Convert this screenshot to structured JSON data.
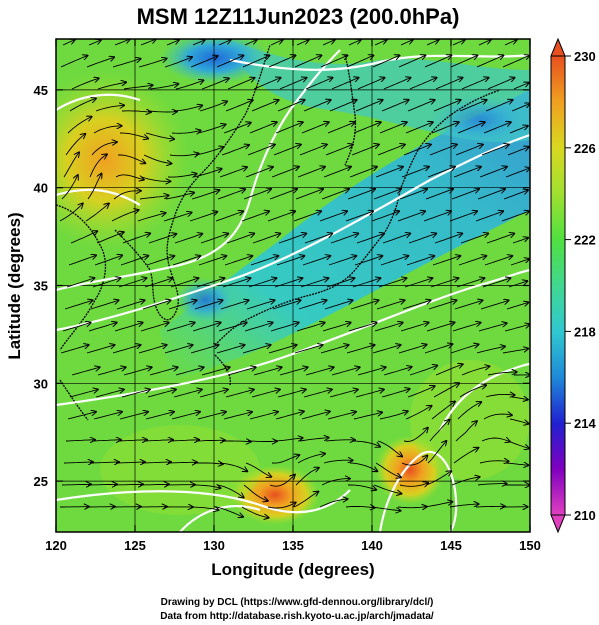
{
  "title": "MSM 12Z11Jun2023 (200.0hPa)",
  "x_axis": {
    "label": "Longitude (degrees)",
    "range": [
      120,
      150
    ],
    "ticks": [
      "120",
      "125",
      "130",
      "135",
      "140",
      "145",
      "150"
    ]
  },
  "y_axis": {
    "label": "Latitude  (degrees)",
    "range": [
      22.4,
      47.6
    ],
    "ticks": [
      "25",
      "30",
      "35",
      "40",
      "45"
    ]
  },
  "colorbar": {
    "range": [
      210,
      230
    ],
    "ticks": [
      "210",
      "214",
      "218",
      "222",
      "226",
      "230"
    ],
    "colors": [
      "#e040c0",
      "#8000c0",
      "#2020d0",
      "#1e8ad8",
      "#30c8d0",
      "#40d890",
      "#50e040",
      "#a0e030",
      "#d8d820",
      "#f0a020",
      "#e85020"
    ]
  },
  "credits": {
    "line1": "Drawing by DCL (https://www.gfd-dennou.org/library/dcl/)",
    "line2": "Data from http://database.rish.kyoto-u.ac.jp/arch/jmadata/"
  },
  "field_features": {
    "warm_cores": [
      "low near 122E 43N",
      "high near 134.5E 24.5N",
      "high near 142.5E 25.5N"
    ],
    "cold_band": "jet axis from 127E 34N to 150E 44N",
    "cold_core": "near 130E 46.5N"
  }
}
